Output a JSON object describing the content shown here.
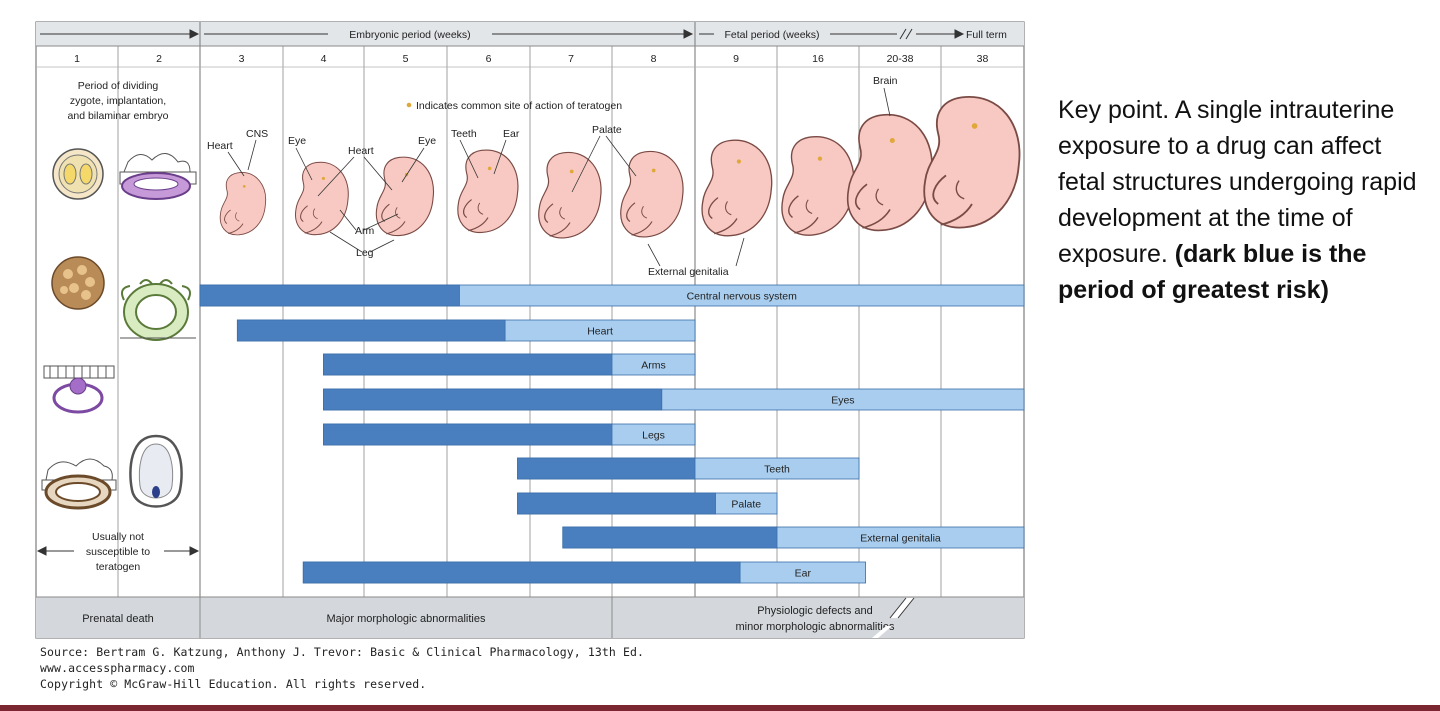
{
  "header": {
    "embryonic": "Embryonic period (weeks)",
    "fetal": "Fetal period (weeks)",
    "full_term": "Full term"
  },
  "weeks": [
    "1",
    "2",
    "3",
    "4",
    "5",
    "6",
    "7",
    "8",
    "9",
    "16",
    "20-38",
    "38"
  ],
  "left_note": [
    "Period of dividing",
    "zygote, implantation,",
    "and bilaminar embryo"
  ],
  "indicator_note": "Indicates common site of action of teratogen",
  "organ_labels": {
    "heart_a": "Heart",
    "cns": "CNS",
    "eye_a": "Eye",
    "heart_b": "Heart",
    "eye_b": "Eye",
    "teeth": "Teeth",
    "ear": "Ear",
    "palate": "Palate",
    "arm": "Arm",
    "leg": "Leg",
    "external_genitalia": "External genitalia",
    "brain": "Brain"
  },
  "bars": [
    {
      "label": "Central nervous system",
      "dark_start": 2.0,
      "dark_end": 5.15,
      "light_end": 12.0
    },
    {
      "label": "Heart",
      "dark_start": 2.45,
      "dark_end": 5.7,
      "light_end": 8.0
    },
    {
      "label": "Arms",
      "dark_start": 3.5,
      "dark_end": 7.0,
      "light_end": 8.0
    },
    {
      "label": "Eyes",
      "dark_start": 3.5,
      "dark_end": 7.6,
      "light_end": 12.0
    },
    {
      "label": "Legs",
      "dark_start": 3.5,
      "dark_end": 7.0,
      "light_end": 8.0
    },
    {
      "label": "Teeth",
      "dark_start": 5.85,
      "dark_end": 8.0,
      "light_end": 10.0
    },
    {
      "label": "Palate",
      "dark_start": 5.85,
      "dark_end": 8.25,
      "light_end": 9.0
    },
    {
      "label": "External genitalia",
      "dark_start": 6.4,
      "dark_end": 9.0,
      "light_end": 12.0
    },
    {
      "label": "Ear",
      "dark_start": 3.25,
      "dark_end": 8.55,
      "light_end": 10.08
    }
  ],
  "not_susceptible": [
    "Usually not",
    "susceptible to",
    "teratogen"
  ],
  "footer": {
    "prenatal_death": "Prenatal death",
    "major": "Major morphologic abnormalities",
    "physiologic": [
      "Physiologic defects and",
      "minor morphologic abnormalities"
    ]
  },
  "source_lines": [
    "Source: Bertram G. Katzung, Anthony J. Trevor: Basic & Clinical Pharmacology, 13th Ed.",
    "www.accesspharmacy.com",
    "Copyright © McGraw-Hill Education. All rights reserved."
  ],
  "key_point": {
    "normal": "Key point. A single intrauterine exposure to a drug can affect fetal structures undergoing rapid development at the time of exposure. ",
    "bold": "(dark blue is the period of greatest risk)"
  },
  "colors": {
    "dark_bar": "#4a7fbf",
    "light_bar": "#a9cdee",
    "embryo": "#f7c9c2",
    "embryo_stroke": "#7a4a45",
    "gray_band": "#d4d8dc",
    "grid": "#8a8a8a",
    "accent_rule": "#7a2732"
  }
}
